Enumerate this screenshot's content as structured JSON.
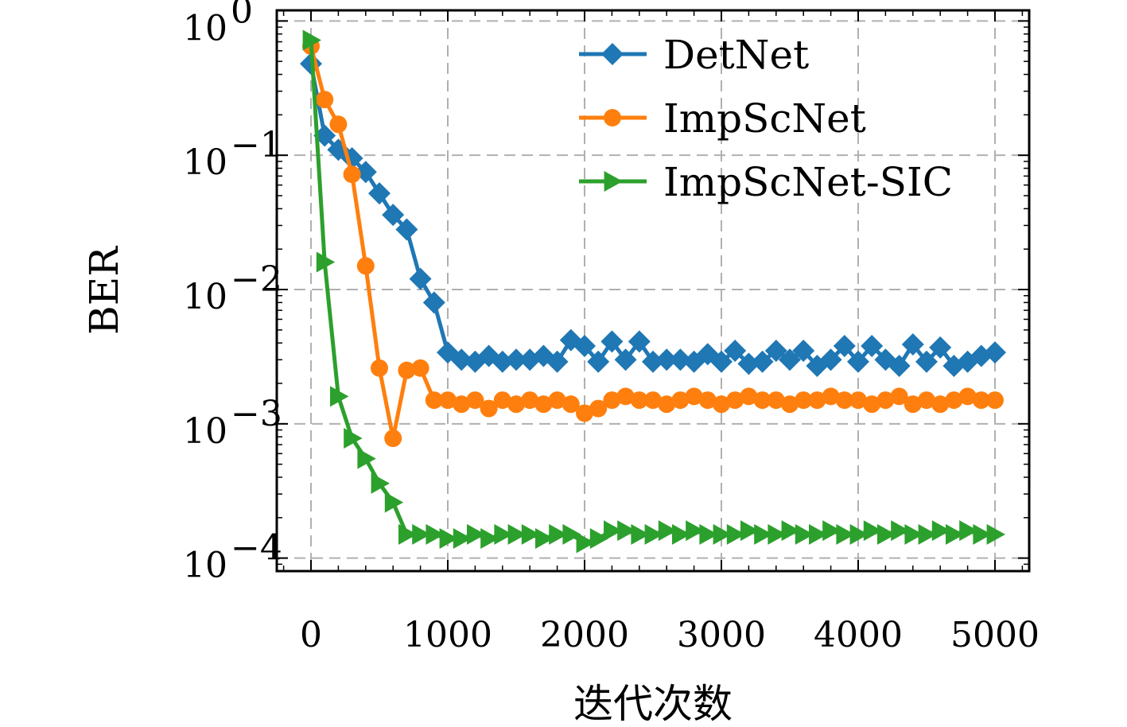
{
  "chart_data": {
    "type": "line",
    "xlabel": "迭代次数",
    "ylabel": "BER",
    "xlim": [
      -250,
      5250
    ],
    "ylim": [
      8e-05,
      1.2
    ],
    "yscale": "log",
    "grid": true,
    "legend_position": "top-right",
    "x_ticks": [
      {
        "value": 0,
        "label": "0"
      },
      {
        "value": 1000,
        "label": "1000"
      },
      {
        "value": 2000,
        "label": "2000"
      },
      {
        "value": 3000,
        "label": "3000"
      },
      {
        "value": 4000,
        "label": "4000"
      },
      {
        "value": 5000,
        "label": "5000"
      }
    ],
    "y_ticks": [
      {
        "value": 1,
        "base": "10",
        "exp": "0"
      },
      {
        "value": 0.1,
        "base": "10",
        "exp": "−1"
      },
      {
        "value": 0.01,
        "base": "10",
        "exp": "−2"
      },
      {
        "value": 0.001,
        "base": "10",
        "exp": "−3"
      },
      {
        "value": 0.0001,
        "base": "10",
        "exp": "−4"
      }
    ],
    "x": [
      0,
      100,
      200,
      300,
      400,
      500,
      600,
      700,
      800,
      900,
      1000,
      1100,
      1200,
      1300,
      1400,
      1500,
      1600,
      1700,
      1800,
      1900,
      2000,
      2100,
      2200,
      2300,
      2400,
      2500,
      2600,
      2700,
      2800,
      2900,
      3000,
      3100,
      3200,
      3300,
      3400,
      3500,
      3600,
      3700,
      3800,
      3900,
      4000,
      4100,
      4200,
      4300,
      4400,
      4500,
      4600,
      4700,
      4800,
      4900,
      5000
    ],
    "series": [
      {
        "name": "DetNet",
        "color": "#1f77b4",
        "marker": "diamond",
        "values": [
          0.48,
          0.14,
          0.11,
          0.095,
          0.075,
          0.052,
          0.036,
          0.028,
          0.012,
          0.008,
          0.0034,
          0.003,
          0.0029,
          0.0032,
          0.0029,
          0.003,
          0.003,
          0.0032,
          0.0029,
          0.0042,
          0.0038,
          0.0029,
          0.0041,
          0.003,
          0.0041,
          0.0029,
          0.003,
          0.003,
          0.0029,
          0.0033,
          0.0029,
          0.0035,
          0.0028,
          0.0029,
          0.0035,
          0.003,
          0.0035,
          0.0027,
          0.003,
          0.0038,
          0.0029,
          0.0038,
          0.003,
          0.0027,
          0.0039,
          0.0029,
          0.0037,
          0.0027,
          0.0029,
          0.0032,
          0.0034
        ]
      },
      {
        "name": "ImpScNet",
        "color": "#ff7f0e",
        "marker": "circle",
        "values": [
          0.65,
          0.26,
          0.17,
          0.072,
          0.015,
          0.0026,
          0.00078,
          0.0025,
          0.0026,
          0.0015,
          0.0015,
          0.0014,
          0.0015,
          0.0013,
          0.0015,
          0.0014,
          0.0015,
          0.0014,
          0.0015,
          0.0014,
          0.0012,
          0.0013,
          0.0015,
          0.0016,
          0.0015,
          0.0015,
          0.0014,
          0.0015,
          0.0016,
          0.0015,
          0.0014,
          0.0015,
          0.0016,
          0.0015,
          0.0015,
          0.0014,
          0.0015,
          0.0015,
          0.0016,
          0.0015,
          0.0015,
          0.0014,
          0.0015,
          0.0016,
          0.0014,
          0.0015,
          0.0014,
          0.0015,
          0.0016,
          0.0015,
          0.0015
        ]
      },
      {
        "name": "ImpScNet-SIC",
        "color": "#2ca02c",
        "marker": "triangle-right",
        "values": [
          0.72,
          0.016,
          0.0016,
          0.00078,
          0.00055,
          0.00036,
          0.00026,
          0.00015,
          0.00015,
          0.00015,
          0.00014,
          0.00014,
          0.00015,
          0.00014,
          0.00015,
          0.00015,
          0.00015,
          0.00014,
          0.00015,
          0.00015,
          0.00013,
          0.00014,
          0.00016,
          0.00016,
          0.00015,
          0.00015,
          0.00016,
          0.00015,
          0.00016,
          0.00015,
          0.00015,
          0.00015,
          0.00016,
          0.00015,
          0.00015,
          0.00016,
          0.00015,
          0.00015,
          0.00016,
          0.00015,
          0.00015,
          0.00016,
          0.00015,
          0.00016,
          0.00015,
          0.00015,
          0.00016,
          0.00015,
          0.00016,
          0.00015,
          0.00015
        ]
      }
    ]
  }
}
